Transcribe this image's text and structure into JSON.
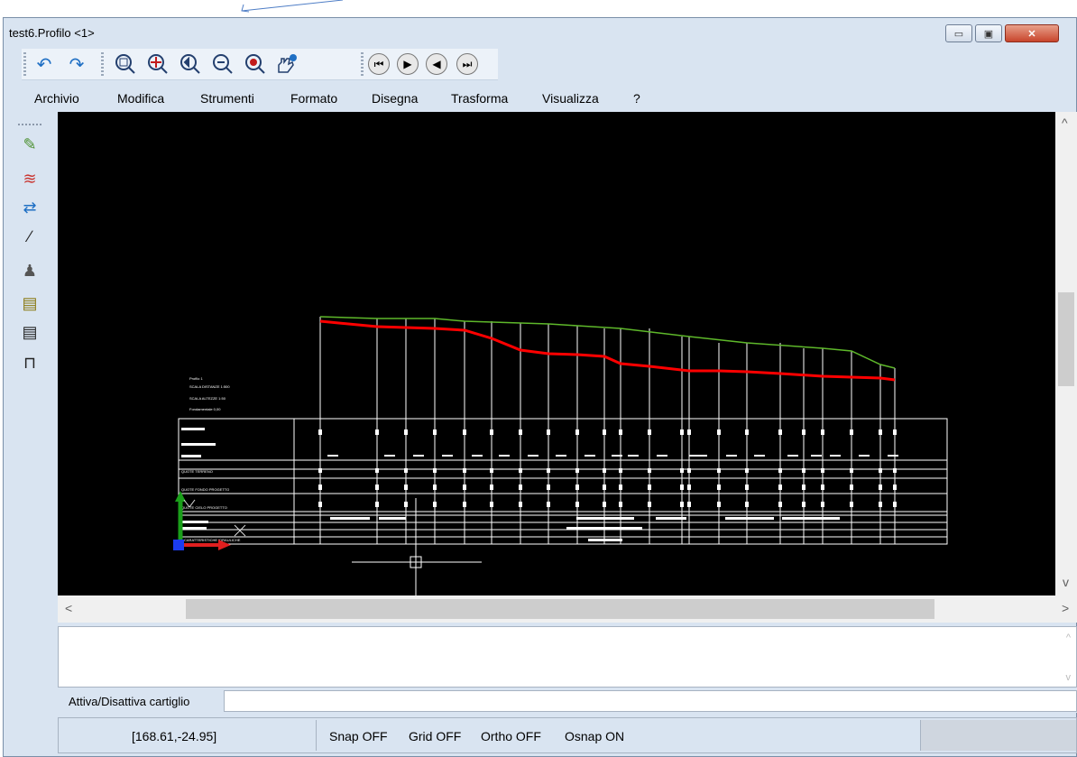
{
  "window": {
    "title": "test6.Profilo <1>",
    "controls": {
      "minimize": "▭",
      "restore": "▣",
      "close": "✕"
    }
  },
  "toolbar": {
    "icons": [
      "undo-icon",
      "redo-icon",
      "zoom-window-icon",
      "zoom-extents-icon",
      "zoom-previous-icon",
      "zoom-out-icon",
      "zoom-in-icon",
      "pan-icon",
      "first-icon",
      "next-icon",
      "previous-icon",
      "last-icon"
    ],
    "glyphs": {
      "undo": "↶",
      "redo": "↷",
      "zoom": "🔍",
      "nav_first": "⏮",
      "nav_next": "▶",
      "nav_prev": "◀",
      "nav_last": "⏭"
    }
  },
  "menu": {
    "items": [
      "Archivio",
      "Modifica",
      "Strumenti",
      "Formato",
      "Disegna",
      "Trasforma",
      "Visualizza",
      "?"
    ]
  },
  "left_tools": {
    "icons": [
      "edit-profile-icon",
      "chart-icon",
      "swap-icon",
      "curve-icon",
      "sketch-icon",
      "table-yellow-icon",
      "table-white-icon",
      "frame-icon"
    ],
    "glyphs": [
      "✎",
      "≋",
      "⇄",
      "∕",
      "♟",
      "▤",
      "▤",
      "⊓"
    ]
  },
  "drawing": {
    "background": "#000000",
    "terrain_color": "#5eb82a",
    "project_color": "#ff0000",
    "line_color": "#ffffff",
    "legend_lines": [
      "Profilo 1",
      "SCALA DISTANZE 1:500",
      "SCALA ALTEZZE 1:50",
      "Fondamentale 0,00"
    ],
    "row_labels": [
      "QUOTE TERRENO",
      "QUOTE FONDO PROGETTO",
      "QUOTE CIELO PROGETTO",
      "CARATTERISTICHE IDRAULICHE"
    ]
  },
  "scroll": {
    "left_arrow": "<",
    "right_arrow": ">",
    "up_arrow": "^",
    "down_arrow": "v"
  },
  "command": {
    "label": "Attiva/Disattiva cartiglio",
    "input_value": ""
  },
  "status": {
    "coordinates": "[168.61,-24.95]",
    "snap": "Snap OFF",
    "grid": "Grid OFF",
    "ortho": "Ortho OFF",
    "osnap": "Osnap ON"
  }
}
